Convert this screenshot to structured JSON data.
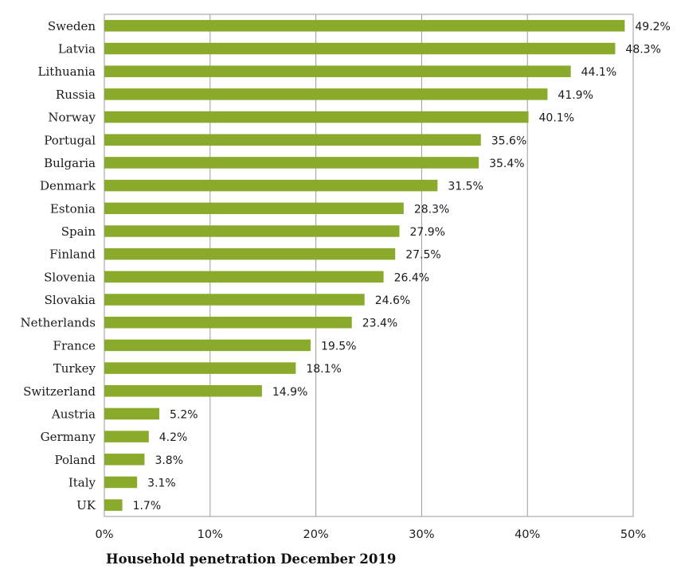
{
  "chart_data": {
    "type": "bar",
    "orientation": "horizontal",
    "categories": [
      "Sweden",
      "Latvia",
      "Lithuania",
      "Russia",
      "Norway",
      "Portugal",
      "Bulgaria",
      "Denmark",
      "Estonia",
      "Spain",
      "Finland",
      "Slovenia",
      "Slovakia",
      "Netherlands",
      "France",
      "Turkey",
      "Switzerland",
      "Austria",
      "Germany",
      "Poland",
      "Italy",
      "UK"
    ],
    "values": [
      49.2,
      48.3,
      44.1,
      41.9,
      40.1,
      35.6,
      35.4,
      31.5,
      28.3,
      27.9,
      27.5,
      26.4,
      24.6,
      23.4,
      19.5,
      18.1,
      14.9,
      5.2,
      4.2,
      3.8,
      3.1,
      1.7
    ],
    "value_labels": [
      "49.2%",
      "48.3%",
      "44.1%",
      "41.9%",
      "40.1%",
      "35.6%",
      "35.4%",
      "31.5%",
      "28.3%",
      "27.9%",
      "27.5%",
      "26.4%",
      "24.6%",
      "23.4%",
      "19.5%",
      "18.1%",
      "14.9%",
      "5.2%",
      "4.2%",
      "3.8%",
      "3.1%",
      "1.7%"
    ],
    "title": "",
    "xlabel": "Household penetration December 2019",
    "ylabel": "",
    "xlim": [
      0,
      50
    ],
    "xticks": [
      0,
      10,
      20,
      30,
      40,
      50
    ],
    "xtick_labels": [
      "0%",
      "10%",
      "20%",
      "30%",
      "40%",
      "50%"
    ],
    "grid": "vertical",
    "legend": "none",
    "colors": {
      "bar": "#8aaa2c",
      "grid": "#9a9a9a",
      "frame": "#9a9a9a"
    }
  }
}
